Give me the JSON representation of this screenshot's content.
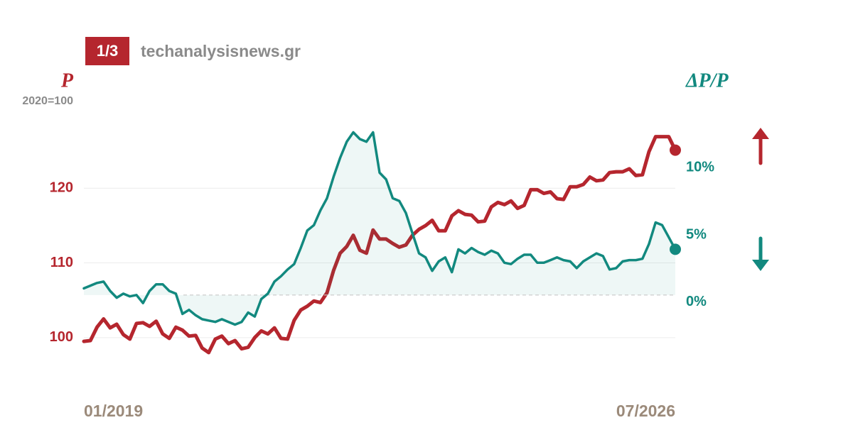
{
  "chart_data": {
    "type": "line",
    "badge": "1/3",
    "source": "techanalysisnews.gr",
    "ylabel": "P",
    "ylabel_note": "2020=100",
    "y2label": "ΔP/P",
    "categories": [
      "01/2019",
      null,
      null,
      null,
      null,
      null,
      null,
      null,
      null,
      null,
      null,
      null,
      null,
      null,
      null,
      null,
      null,
      null,
      null,
      null,
      null,
      null,
      null,
      null,
      null,
      null,
      null,
      null,
      null,
      null,
      null,
      null,
      null,
      null,
      null,
      null,
      null,
      null,
      null,
      null,
      null,
      null,
      null,
      null,
      null,
      null,
      null,
      null,
      null,
      null,
      null,
      null,
      null,
      null,
      null,
      null,
      null,
      null,
      null,
      null,
      null,
      null,
      null,
      null,
      null,
      null,
      null,
      null,
      null,
      null,
      null,
      null,
      null,
      null,
      null,
      null,
      null,
      null,
      null,
      null,
      null,
      null,
      null,
      null,
      null,
      null,
      null,
      null,
      null,
      null,
      "07/2026"
    ],
    "series": [
      {
        "color": "#b5262e",
        "values": [
          99.5,
          99.6,
          101.4,
          102.5,
          101.3,
          101.8,
          100.4,
          99.8,
          101.9,
          102.0,
          101.5,
          102.2,
          100.5,
          99.9,
          101.4,
          101.0,
          100.2,
          100.3,
          98.6,
          98.0,
          99.8,
          100.2,
          99.2,
          99.6,
          98.5,
          98.7,
          100.0,
          100.9,
          100.5,
          101.3,
          99.9,
          99.8,
          102.3,
          103.7,
          104.2,
          104.9,
          104.7,
          106.0,
          109.0,
          111.3,
          112.2,
          113.7,
          111.7,
          111.3,
          114.4,
          113.2,
          113.2,
          112.6,
          112.1,
          112.4,
          113.7,
          114.5,
          115.0,
          115.7,
          114.3,
          114.3,
          116.3,
          117.0,
          116.5,
          116.4,
          115.5,
          115.6,
          117.5,
          118.1,
          117.8,
          118.3,
          117.3,
          117.7,
          119.8,
          119.8,
          119.3,
          119.5,
          118.6,
          118.5,
          120.2,
          120.2,
          120.5,
          121.5,
          121.0,
          121.1,
          122.1,
          122.2,
          122.2,
          122.6,
          121.7,
          121.8,
          124.9,
          126.9,
          126.9,
          126.9,
          125.1
        ]
      },
      {
        "color": "#12897f",
        "axis": "y2",
        "values": [
          0.5,
          0.7,
          0.9,
          1.0,
          0.3,
          -0.2,
          0.1,
          -0.1,
          0.0,
          -0.6,
          0.3,
          0.8,
          0.8,
          0.3,
          0.1,
          -1.4,
          -1.1,
          -1.5,
          -1.8,
          -1.9,
          -2.0,
          -1.8,
          -2.0,
          -2.2,
          -2.0,
          -1.3,
          -1.6,
          -0.3,
          0.1,
          1.0,
          1.4,
          1.9,
          2.3,
          3.5,
          4.8,
          5.2,
          6.3,
          7.2,
          8.8,
          10.2,
          11.4,
          12.1,
          11.6,
          11.4,
          12.1,
          9.1,
          8.6,
          7.2,
          7.0,
          6.1,
          4.6,
          3.1,
          2.8,
          1.8,
          2.5,
          2.8,
          1.7,
          3.4,
          3.1,
          3.5,
          3.2,
          3.0,
          3.3,
          3.1,
          2.4,
          2.3,
          2.7,
          3.0,
          3.0,
          2.4,
          2.4,
          2.6,
          2.8,
          2.6,
          2.5,
          2.0,
          2.5,
          2.8,
          3.1,
          2.9,
          1.9,
          2.0,
          2.5,
          2.6,
          2.6,
          2.7,
          3.8,
          5.4,
          5.2,
          4.3,
          3.4
        ]
      }
    ],
    "ylim": [
      94,
      130
    ],
    "yticks": [
      100,
      110,
      120
    ],
    "y2lim": [
      -6.5,
      13.5
    ],
    "y2ticks": [
      {
        "value": 0,
        "label": "0%"
      },
      {
        "value": 5,
        "label": "5%"
      },
      {
        "value": 10,
        "label": "10%"
      }
    ],
    "grid": true
  }
}
